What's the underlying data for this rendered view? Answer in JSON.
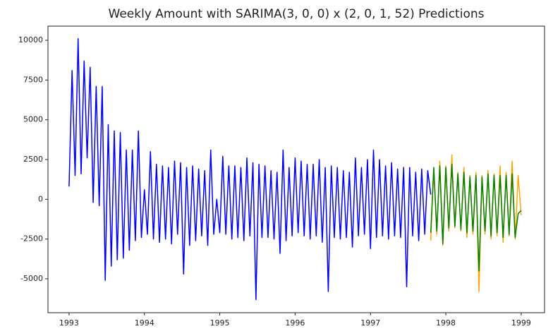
{
  "chart_data": {
    "type": "line",
    "title": "Weekly Amount with SARIMA(3, 0, 0) x (2, 0, 1, 52) Predictions",
    "xlim": [
      1992.72,
      1999.31
    ],
    "xticks": [
      1993,
      1994,
      1995,
      1996,
      1997,
      1998,
      1999
    ],
    "ylim": [
      -7130,
      10890
    ],
    "yticks": [
      -5000,
      -2500,
      0,
      2500,
      5000,
      7500,
      10000
    ],
    "series": [
      {
        "color": "#0000ff",
        "x": [
          1993,
          1993.04,
          1993.08,
          1993.12,
          1993.16,
          1993.2,
          1993.24,
          1993.28,
          1993.32,
          1993.36,
          1993.4,
          1993.44,
          1993.48,
          1993.52,
          1993.56,
          1993.6,
          1993.64,
          1993.68,
          1993.72,
          1993.76,
          1993.8,
          1993.84,
          1993.88,
          1993.92,
          1993.96,
          1994,
          1994.04,
          1994.08,
          1994.12,
          1994.16,
          1994.2,
          1994.24,
          1994.28,
          1994.32,
          1994.36,
          1994.4,
          1994.44,
          1994.48,
          1994.52,
          1994.56,
          1994.6,
          1994.64,
          1994.68,
          1994.72,
          1994.76,
          1994.8,
          1994.84,
          1994.88,
          1994.92,
          1994.96,
          1995,
          1995.04,
          1995.08,
          1995.12,
          1995.16,
          1995.2,
          1995.24,
          1995.28,
          1995.32,
          1995.36,
          1995.4,
          1995.44,
          1995.48,
          1995.52,
          1995.56,
          1995.6,
          1995.64,
          1995.68,
          1995.72,
          1995.76,
          1995.8,
          1995.84,
          1995.88,
          1995.92,
          1995.96,
          1996,
          1996.04,
          1996.08,
          1996.12,
          1996.16,
          1996.2,
          1996.24,
          1996.28,
          1996.32,
          1996.36,
          1996.4,
          1996.44,
          1996.48,
          1996.52,
          1996.56,
          1996.6,
          1996.64,
          1996.68,
          1996.72,
          1996.76,
          1996.8,
          1996.84,
          1996.88,
          1996.92,
          1996.96,
          1997,
          1997.04,
          1997.08,
          1997.12,
          1997.16,
          1997.2,
          1997.24,
          1997.28,
          1997.32,
          1997.36,
          1997.4,
          1997.44,
          1997.48,
          1997.52,
          1997.56,
          1997.6,
          1997.64,
          1997.68,
          1997.72,
          1997.76,
          1997.8
        ],
        "values": [
          800,
          8100,
          1500,
          10100,
          1600,
          8700,
          2600,
          8300,
          -200,
          7100,
          -400,
          7100,
          -5100,
          4700,
          -4200,
          4300,
          -3800,
          4200,
          -3700,
          3100,
          -3200,
          3100,
          -2600,
          4300,
          -2400,
          600,
          -2200,
          3000,
          -2500,
          2200,
          -2700,
          2100,
          -2500,
          2000,
          -2800,
          2400,
          -2200,
          2300,
          -4700,
          2000,
          -2900,
          2100,
          -2600,
          1900,
          -2300,
          1800,
          -2900,
          3100,
          -2200,
          0,
          -2100,
          2700,
          -2200,
          2100,
          -2500,
          2100,
          -2400,
          2000,
          -2600,
          2600,
          -2300,
          2300,
          -6300,
          2200,
          -2400,
          2100,
          -2400,
          1800,
          -2500,
          1700,
          -3400,
          3100,
          -2600,
          2000,
          -2300,
          2600,
          -2100,
          2400,
          -2300,
          2200,
          -2500,
          2200,
          -2300,
          2500,
          -2700,
          2000,
          -5800,
          2100,
          -2400,
          2000,
          -2500,
          1800,
          -2400,
          1700,
          -3000,
          2600,
          -2300,
          2000,
          -2200,
          2500,
          -3100,
          3100,
          -2400,
          2500,
          -2300,
          2100,
          -2500,
          2300,
          -2300,
          1900,
          -2400,
          2000,
          -5500,
          2000,
          -2300,
          1700,
          -2600,
          1900,
          -2200,
          1800,
          300
        ]
      },
      {
        "color": "#ffa500",
        "x": [
          1997.8,
          1997.84,
          1997.88,
          1997.92,
          1997.96,
          1998,
          1998.04,
          1998.08,
          1998.12,
          1998.16,
          1998.2,
          1998.24,
          1998.28,
          1998.32,
          1998.36,
          1998.4,
          1998.44,
          1998.48,
          1998.52,
          1998.56,
          1998.6,
          1998.64,
          1998.68,
          1998.72,
          1998.76,
          1998.8,
          1998.84,
          1998.88,
          1998.92,
          1998.96,
          1999
        ],
        "values": [
          -2600,
          2000,
          -2200,
          2400,
          -2900,
          2100,
          -2000,
          2800,
          -1800,
          1700,
          -2000,
          2000,
          -2400,
          1500,
          -2200,
          1700,
          -5800,
          1500,
          -2200,
          1800,
          -2500,
          1600,
          -2300,
          2100,
          -2700,
          1700,
          -2300,
          2400,
          -2500,
          1500,
          -1000
        ]
      },
      {
        "color": "#008000",
        "x": [
          1997.8,
          1997.84,
          1997.88,
          1997.92,
          1997.96,
          1998,
          1998.04,
          1998.08,
          1998.12,
          1998.16,
          1998.2,
          1998.24,
          1998.28,
          1998.32,
          1998.36,
          1998.4,
          1998.44,
          1998.48,
          1998.52,
          1998.56,
          1998.6,
          1998.64,
          1998.68,
          1998.72,
          1998.76,
          1998.8,
          1998.84,
          1998.88,
          1998.92,
          1998.96,
          1999
        ],
        "values": [
          -2100,
          2000,
          -2000,
          2100,
          -2800,
          2000,
          -1800,
          2200,
          -1700,
          1600,
          -1900,
          1700,
          -2100,
          1400,
          -2000,
          1500,
          -4500,
          1400,
          -2000,
          1600,
          -2300,
          1500,
          -2100,
          1500,
          -2400,
          1500,
          -2200,
          1600,
          -2400,
          -900,
          -700
        ]
      }
    ]
  }
}
